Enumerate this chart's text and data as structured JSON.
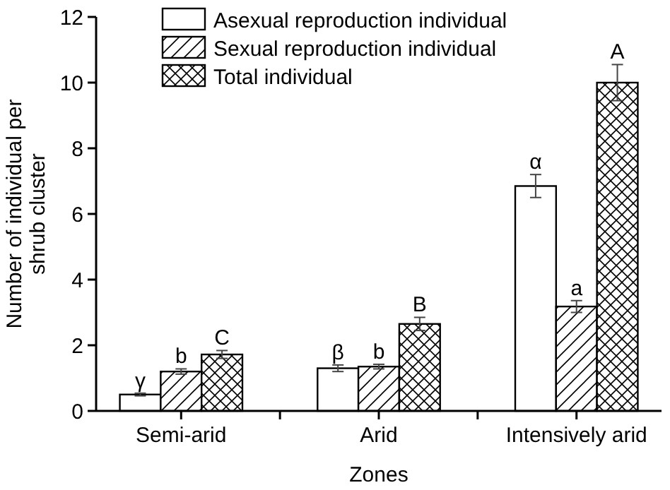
{
  "chart_data": {
    "type": "bar",
    "xlabel": "Zones",
    "ylabel": "Number of individual per shrub cluster",
    "categories": [
      "Semi-arid",
      "Arid",
      "Intensively arid"
    ],
    "series": [
      {
        "name": "Asexual reproduction individual",
        "color": "#000000",
        "values": [
          0.5,
          1.3,
          6.85
        ],
        "errors": [
          0.04,
          0.1,
          0.35
        ],
        "value_labels": [
          "γ",
          "β",
          "α"
        ]
      },
      {
        "name": "Sexual reproduction individual",
        "color": "#000000",
        "values": [
          1.2,
          1.35,
          3.18
        ],
        "errors": [
          0.08,
          0.07,
          0.18
        ],
        "value_labels": [
          "b",
          "b",
          "a"
        ]
      },
      {
        "name": "Total individual",
        "color": "#000000",
        "values": [
          1.72,
          2.65,
          10.0
        ],
        "errors": [
          0.12,
          0.2,
          0.55
        ],
        "value_labels": [
          "C",
          "B",
          "A"
        ]
      }
    ],
    "ylim": [
      0,
      12
    ],
    "yticks": [
      0,
      2,
      4,
      6,
      8,
      10,
      12
    ],
    "grid": false,
    "legend": "top"
  }
}
